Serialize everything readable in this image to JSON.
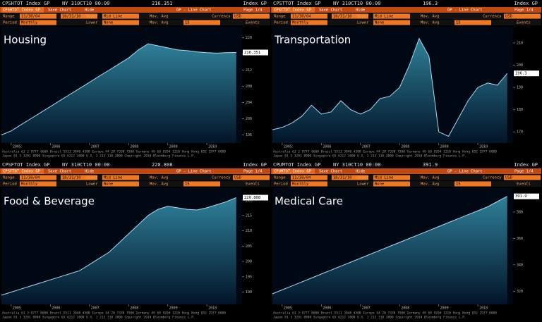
{
  "toolbar": {
    "save": "Save Chart",
    "hide": "Hide",
    "mode": "GP - Line Chart",
    "page": "Page 1/4",
    "range": "Range",
    "start": "11/30/04",
    "end": "10/31/10",
    "upper": "Upper",
    "mid": "Mid Line",
    "movavg": "Mov. Avg",
    "currency": "Currency",
    "usd": "USD",
    "period": "Period",
    "monthly": "Monthly",
    "lower": "Lower",
    "none": "None",
    "ma": "15",
    "events": "Events",
    "index": "Index GP",
    "footer1": "Australia 61 2 9777 8600 Brazil 5511 3048 4500 Europe 44 20 7330 7500 Germany 49 69 9204 1210 Hong Kong 852 2977 6000",
    "footer2": "Japan 81 3 3201 8900 Singapore 65 6212 1000 U.S. 1 212 318 2000 Copyright 2010 Bloomberg Finance L.P."
  },
  "chart_data": [
    {
      "type": "area",
      "ticker": "CPSHTOT Index GP",
      "date": "NY 310CT10 00:00",
      "last": "216.351",
      "title": "Housing",
      "x": [
        2004.75,
        2005,
        2005.25,
        2005.5,
        2005.75,
        2006,
        2006.25,
        2006.5,
        2006.75,
        2007,
        2007.25,
        2007.5,
        2007.75,
        2008,
        2008.25,
        2008.5,
        2008.75,
        2009,
        2009.25,
        2009.5,
        2009.75,
        2010,
        2010.25,
        2010.5,
        2010.75
      ],
      "values": [
        196,
        197,
        198.5,
        200,
        201.5,
        203,
        204.5,
        206,
        207.5,
        209,
        210.5,
        212,
        213.5,
        215,
        217,
        218.5,
        218,
        217.5,
        217,
        216.8,
        216.5,
        216.3,
        216.2,
        216.3,
        216.351
      ],
      "xlim": [
        2004.75,
        2010.9
      ],
      "xticks": [
        2005,
        2006,
        2007,
        2008,
        2009,
        2010
      ],
      "ylim": [
        194,
        222
      ],
      "yticks": [
        196,
        200,
        204,
        208,
        212,
        216,
        220
      ],
      "color": "#2f8099"
    },
    {
      "type": "area",
      "ticker": "CPSTTOT Index GP",
      "date": "NY 310CT10 00:00",
      "last": "196.3",
      "title": "Transportation",
      "x": [
        2004.75,
        2005,
        2005.25,
        2005.5,
        2005.75,
        2006,
        2006.25,
        2006.5,
        2006.75,
        2007,
        2007.25,
        2007.5,
        2007.75,
        2008,
        2008.25,
        2008.5,
        2008.75,
        2009,
        2009.25,
        2009.5,
        2009.75,
        2010,
        2010.25,
        2010.5,
        2010.75
      ],
      "values": [
        171,
        172,
        174,
        177,
        182,
        178,
        179,
        184,
        180,
        178,
        180,
        185,
        186,
        190,
        200,
        212,
        204,
        170,
        168,
        176,
        184,
        190,
        192,
        191,
        196.3
      ],
      "xlim": [
        2004.75,
        2010.9
      ],
      "xticks": [
        2005,
        2006,
        2007,
        2008,
        2009,
        2010
      ],
      "ylim": [
        165,
        216
      ],
      "yticks": [
        170,
        180,
        190,
        200,
        210
      ],
      "color": "#2f8099"
    },
    {
      "type": "area",
      "ticker": "CPSFTOT Index GP",
      "date": "NY 310CT10 00:00",
      "last": "220.808",
      "title": "Food & Beverage",
      "x": [
        2004.75,
        2005,
        2005.25,
        2005.5,
        2005.75,
        2006,
        2006.25,
        2006.5,
        2006.75,
        2007,
        2007.25,
        2007.5,
        2007.75,
        2008,
        2008.25,
        2008.5,
        2008.75,
        2009,
        2009.25,
        2009.5,
        2009.75,
        2010,
        2010.25,
        2010.5,
        2010.75
      ],
      "values": [
        189,
        190,
        191,
        192,
        193,
        194,
        195,
        196,
        197,
        199,
        201,
        203,
        206,
        209,
        212,
        215,
        217,
        218,
        217.5,
        217,
        216.8,
        217.5,
        218.5,
        219.5,
        220.808
      ],
      "xlim": [
        2004.75,
        2010.9
      ],
      "xticks": [
        2005,
        2006,
        2007,
        2008,
        2009,
        2010
      ],
      "ylim": [
        186,
        223
      ],
      "yticks": [
        190,
        195,
        200,
        205,
        210,
        215,
        220
      ],
      "color": "#2f8099"
    },
    {
      "type": "area",
      "ticker": "CPUMTOT Index GP",
      "date": "NY 310CT10 00:00",
      "last": "391.9",
      "title": "Medical Care",
      "x": [
        2004.75,
        2005,
        2005.25,
        2005.5,
        2005.75,
        2006,
        2006.25,
        2006.5,
        2006.75,
        2007,
        2007.25,
        2007.5,
        2007.75,
        2008,
        2008.25,
        2008.5,
        2008.75,
        2009,
        2009.25,
        2009.5,
        2009.75,
        2010,
        2010.25,
        2010.5,
        2010.75
      ],
      "values": [
        318,
        321,
        324,
        327,
        330,
        333,
        336,
        339,
        342,
        345,
        348,
        351,
        354,
        357,
        360,
        363,
        366,
        369,
        372,
        375,
        378,
        381,
        384,
        388,
        391.9
      ],
      "xlim": [
        2004.75,
        2010.9
      ],
      "xticks": [
        2005,
        2006,
        2007,
        2008,
        2009,
        2010
      ],
      "ylim": [
        310,
        396
      ],
      "yticks": [
        320,
        340,
        360,
        380
      ],
      "color": "#2f8099"
    }
  ]
}
